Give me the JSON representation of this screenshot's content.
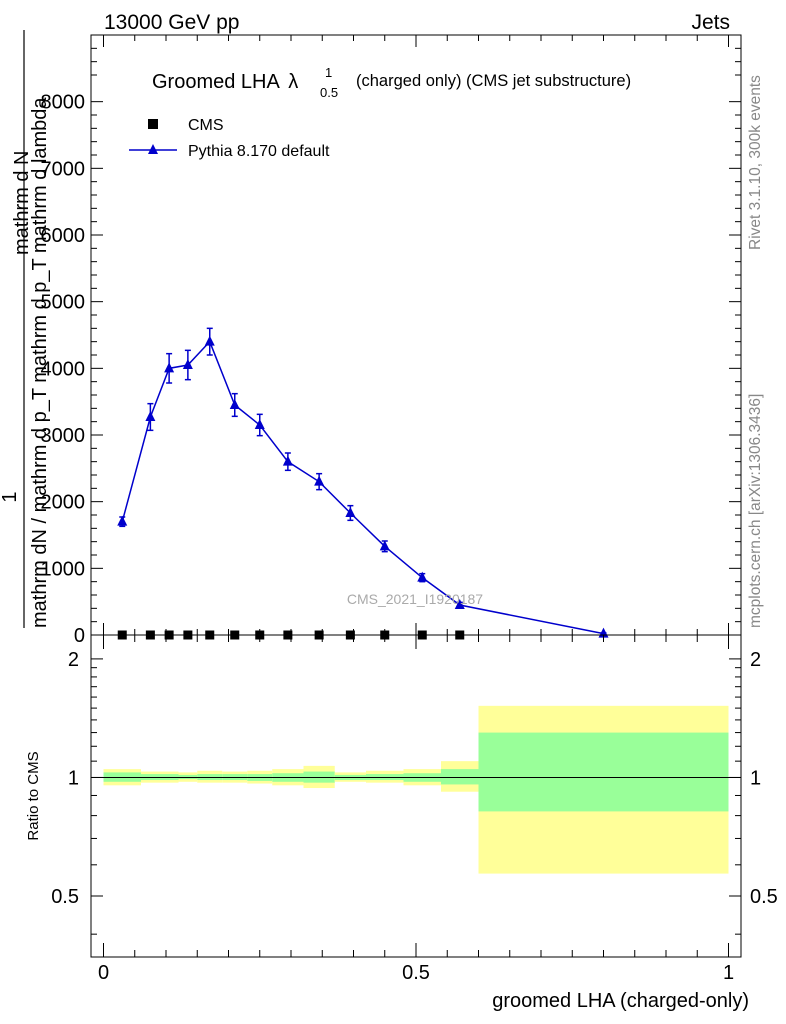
{
  "header": {
    "left": "13000 GeV pp",
    "right": "Jets"
  },
  "side_labels": {
    "rivet": "Rivet 3.1.10,  300k events",
    "mcplots": "mcplots.cern.ch [arXiv:1306.3436]"
  },
  "title": {
    "main": "Groomed LHA",
    "symbol": "λ",
    "sup": "1",
    "sub": "0.5",
    "suffix": "(charged only) (CMS jet substructure)"
  },
  "watermark": "CMS_2021_I1920187",
  "ylabel_main": {
    "numerator": "1",
    "denominator": "mathrm dN / mathrm d p_T mathrm d p_T mathrm d lambda",
    "prefix": "mathrm d N"
  },
  "ylabel_ratio": "Ratio to CMS",
  "xlabel": "groomed LHA (charged-only)",
  "chart_data": [
    {
      "type": "line",
      "panel": "main",
      "xlim": [
        -0.02,
        1.02
      ],
      "ylim": [
        0,
        9000
      ],
      "yticks": [
        {
          "v": 0,
          "label": "0"
        },
        {
          "v": 1000,
          "label": "1000"
        },
        {
          "v": 2000,
          "label": "2000"
        },
        {
          "v": 3000,
          "label": "3000"
        },
        {
          "v": 4000,
          "label": "4000"
        },
        {
          "v": 5000,
          "label": "5000"
        },
        {
          "v": 6000,
          "label": "6000"
        },
        {
          "v": 7000,
          "label": "7000"
        },
        {
          "v": 8000,
          "label": "8000"
        }
      ],
      "legend": [
        {
          "label": "CMS",
          "marker": "square",
          "color": "#000000"
        },
        {
          "label": "Pythia 8.170 default",
          "marker": "triangle",
          "color": "#0000cc"
        }
      ],
      "series": [
        {
          "name": "CMS",
          "color": "#000000",
          "x": [
            0.03,
            0.075,
            0.105,
            0.135,
            0.17,
            0.21,
            0.25,
            0.295,
            0.345,
            0.395,
            0.45,
            0.51,
            0.57
          ],
          "y": [
            0,
            0,
            0,
            0,
            0,
            0,
            0,
            0,
            0,
            0,
            0,
            0,
            0
          ]
        },
        {
          "name": "Pythia 8.170 default",
          "color": "#0000cc",
          "x": [
            0.03,
            0.075,
            0.105,
            0.135,
            0.17,
            0.21,
            0.25,
            0.295,
            0.345,
            0.395,
            0.45,
            0.51,
            0.57,
            0.8
          ],
          "y": [
            1700,
            3270,
            4000,
            4050,
            4400,
            3450,
            3150,
            2600,
            2300,
            1830,
            1330,
            860,
            450,
            20
          ],
          "err": [
            70,
            200,
            220,
            220,
            200,
            170,
            160,
            130,
            120,
            110,
            80,
            60,
            40,
            10
          ]
        }
      ]
    },
    {
      "type": "area",
      "panel": "ratio",
      "ylabel": "Ratio to CMS",
      "xlabel": "groomed LHA (charged-only)",
      "xlim": [
        -0.02,
        1.02
      ],
      "ylim": [
        0.35,
        2.3
      ],
      "log_y": true,
      "yticks": [
        {
          "v": 0.5,
          "label": "0.5"
        },
        {
          "v": 1,
          "label": "1"
        },
        {
          "v": 2,
          "label": "2"
        }
      ],
      "xticks": [
        {
          "v": 0,
          "label": "0"
        },
        {
          "v": 0.5,
          "label": "0.5"
        },
        {
          "v": 1,
          "label": "1"
        }
      ],
      "reference": 1,
      "bins": [
        {
          "x0": 0.0,
          "x1": 0.06,
          "y_outer": [
            0.955,
            1.05
          ],
          "y_inner": [
            0.975,
            1.03
          ]
        },
        {
          "x0": 0.06,
          "x1": 0.12,
          "y_outer": [
            0.97,
            1.035
          ],
          "y_inner": [
            0.985,
            1.02
          ]
        },
        {
          "x0": 0.12,
          "x1": 0.15,
          "y_outer": [
            0.975,
            1.03
          ],
          "y_inner": [
            0.99,
            1.015
          ]
        },
        {
          "x0": 0.15,
          "x1": 0.19,
          "y_outer": [
            0.97,
            1.04
          ],
          "y_inner": [
            0.985,
            1.02
          ]
        },
        {
          "x0": 0.19,
          "x1": 0.23,
          "y_outer": [
            0.97,
            1.035
          ],
          "y_inner": [
            0.985,
            1.02
          ]
        },
        {
          "x0": 0.23,
          "x1": 0.27,
          "y_outer": [
            0.965,
            1.04
          ],
          "y_inner": [
            0.98,
            1.02
          ]
        },
        {
          "x0": 0.27,
          "x1": 0.32,
          "y_outer": [
            0.955,
            1.05
          ],
          "y_inner": [
            0.975,
            1.025
          ]
        },
        {
          "x0": 0.32,
          "x1": 0.37,
          "y_outer": [
            0.94,
            1.07
          ],
          "y_inner": [
            0.97,
            1.035
          ]
        },
        {
          "x0": 0.37,
          "x1": 0.42,
          "y_outer": [
            0.975,
            1.03
          ],
          "y_inner": [
            0.985,
            1.015
          ]
        },
        {
          "x0": 0.42,
          "x1": 0.48,
          "y_outer": [
            0.97,
            1.04
          ],
          "y_inner": [
            0.985,
            1.02
          ]
        },
        {
          "x0": 0.48,
          "x1": 0.54,
          "y_outer": [
            0.955,
            1.05
          ],
          "y_inner": [
            0.975,
            1.025
          ]
        },
        {
          "x0": 0.54,
          "x1": 0.6,
          "y_outer": [
            0.92,
            1.1
          ],
          "y_inner": [
            0.96,
            1.05
          ]
        },
        {
          "x0": 0.6,
          "x1": 1.0,
          "y_outer": [
            0.57,
            1.52
          ],
          "y_inner": [
            0.82,
            1.3
          ]
        }
      ]
    }
  ],
  "colors": {
    "mc_line": "#0000cc",
    "data": "#000000",
    "band_outer": "#ffff99",
    "band_inner": "#99ff99"
  }
}
